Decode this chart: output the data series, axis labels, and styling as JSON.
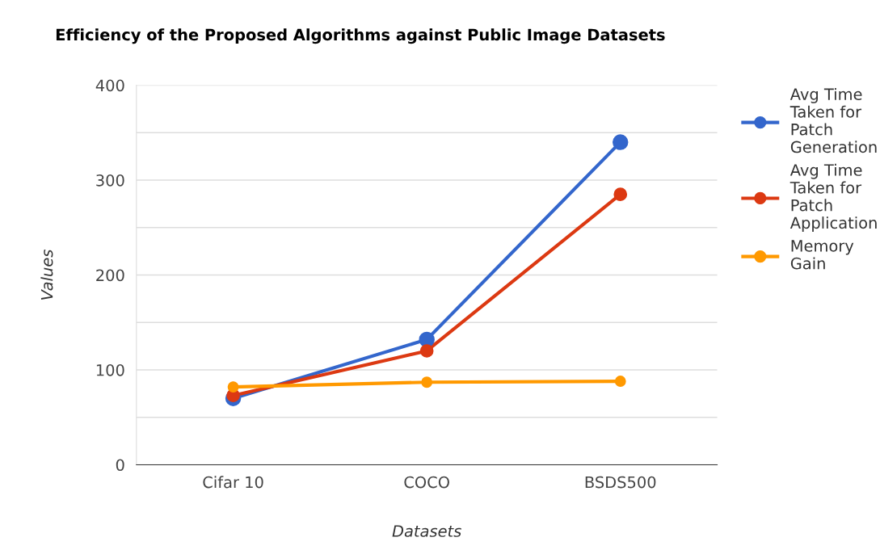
{
  "chart_data": {
    "type": "line",
    "title": "Efficiency of the Proposed Algorithms against Public Image Datasets",
    "xlabel": "Datasets",
    "ylabel": "Values",
    "categories": [
      "Cifar 10",
      "COCO",
      "BSDS500"
    ],
    "series": [
      {
        "name": "Avg Time Taken for Patch Generation",
        "color": "#3366cc",
        "values": [
          70,
          132,
          340
        ]
      },
      {
        "name": "Avg Time Taken for Patch Application",
        "color": "#dc3912",
        "values": [
          73,
          120,
          285
        ]
      },
      {
        "name": "Memory Gain",
        "color": "#ff9900",
        "values": [
          82,
          87,
          88
        ]
      }
    ],
    "ylim": [
      0,
      400
    ],
    "yticks": [
      0,
      {
        "value": 50,
        "label": null
      },
      100,
      {
        "value": 150,
        "label": null
      },
      200,
      {
        "value": 250,
        "label": null
      },
      300,
      {
        "value": 350,
        "label": null
      },
      400
    ],
    "grid": "y",
    "legend": "right",
    "marker": "circle",
    "line_style": "solid"
  }
}
